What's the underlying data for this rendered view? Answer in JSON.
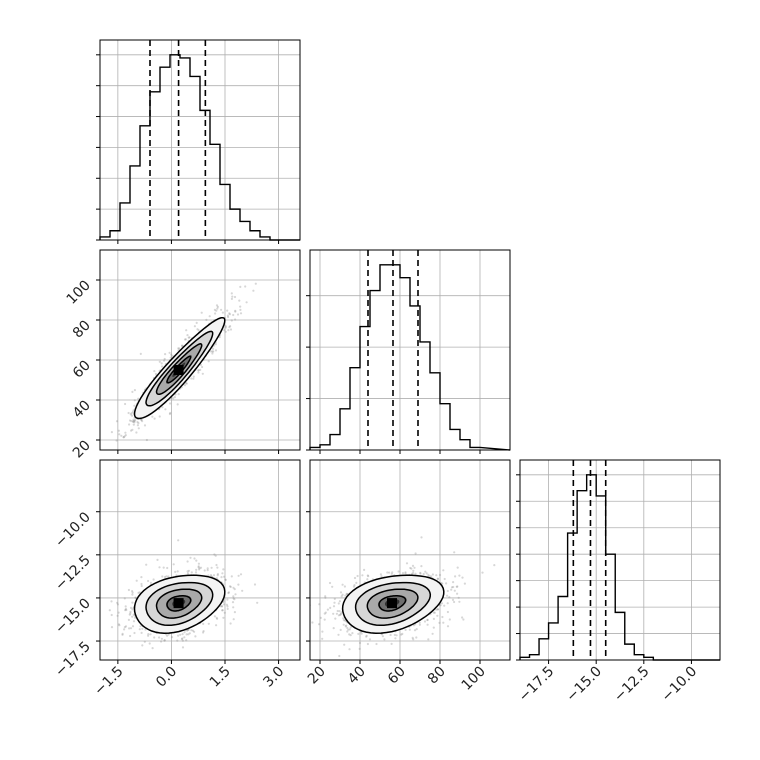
{
  "figure": {
    "background": "#ffffff",
    "grid": true,
    "colors": {
      "hist": "#000000",
      "quantile": "#000000",
      "scatter": "#8c8c8c",
      "grid": "#b0b0b0"
    }
  },
  "chart_data": [
    {
      "type": "histogram",
      "panel": "diag-0",
      "xlim": [
        -2.0,
        3.6
      ],
      "bin_edges": [
        -2.0,
        -1.72,
        -1.44,
        -1.16,
        -0.88,
        -0.6,
        -0.32,
        -0.04,
        0.24,
        0.52,
        0.8,
        1.08,
        1.36,
        1.64,
        1.92,
        2.2,
        2.48,
        2.76,
        3.04
      ],
      "counts": [
        1,
        3,
        12,
        24,
        37,
        48,
        56,
        60,
        59,
        53,
        42,
        31,
        18,
        10,
        6,
        3,
        1,
        0
      ],
      "quantiles": [
        -0.6,
        0.2,
        0.95
      ]
    },
    {
      "type": "histogram",
      "panel": "diag-1",
      "xlim": [
        15,
        115
      ],
      "bin_edges": [
        15,
        20,
        25,
        30,
        35,
        40,
        45,
        50,
        55,
        60,
        65,
        70,
        75,
        80,
        85,
        90,
        95,
        100
      ],
      "counts": [
        1,
        2,
        6,
        16,
        32,
        48,
        62,
        72,
        72,
        67,
        56,
        42,
        30,
        18,
        8,
        4,
        1
      ],
      "quantiles": [
        44,
        56.5,
        69
      ]
    },
    {
      "type": "histogram",
      "panel": "diag-2",
      "xlim": [
        -19.0,
        -8.5
      ],
      "bin_edges": [
        -19.0,
        -18.5,
        -18.0,
        -17.5,
        -17.0,
        -16.5,
        -16.0,
        -15.5,
        -15.0,
        -14.5,
        -14.0,
        -13.5,
        -13.0,
        -12.5,
        -12.0,
        -11.5
      ],
      "counts": [
        1,
        2,
        8,
        14,
        24,
        48,
        64,
        70,
        62,
        40,
        18,
        6,
        2,
        1,
        0
      ],
      "quantiles": [
        -16.2,
        -15.3,
        -14.5
      ]
    },
    {
      "type": "scatter",
      "panel": "joint-1-0",
      "xlim": [
        -2.0,
        3.6
      ],
      "ylim": [
        15,
        115
      ],
      "center": [
        0.2,
        55
      ],
      "spread": [
        0.6,
        12
      ],
      "correlation": 0.93,
      "n_points": 1600
    },
    {
      "type": "scatter",
      "panel": "joint-2-0",
      "xlim": [
        -2.0,
        3.6
      ],
      "ylim": [
        -18.6,
        -7.0
      ],
      "center": [
        0.2,
        -15.3
      ],
      "spread": [
        0.6,
        0.8
      ],
      "correlation": 0.3,
      "n_points": 1600
    },
    {
      "type": "scatter",
      "panel": "joint-2-1",
      "xlim": [
        15,
        115
      ],
      "ylim": [
        -18.6,
        -7.0
      ],
      "center": [
        56,
        -15.3
      ],
      "spread": [
        12,
        0.8
      ],
      "correlation": 0.3,
      "n_points": 1600
    }
  ],
  "axes": {
    "diag-0": {
      "yticks": [
        0,
        10,
        20,
        30,
        40,
        50,
        60
      ]
    },
    "diag-1": {
      "yticks": [
        0,
        20,
        40,
        60
      ]
    },
    "diag-2": {
      "yticks": [
        0,
        10,
        20,
        30,
        40,
        50,
        60,
        70
      ]
    },
    "joint-1-0": {
      "yticks": [
        20,
        40,
        60,
        80,
        100
      ],
      "ytick_labels": [
        "20",
        "40",
        "60",
        "80",
        "100"
      ],
      "xticks": [
        -1.5,
        0.0,
        1.5,
        3.0
      ]
    },
    "joint-2-0": {
      "xticks": [
        -1.5,
        0.0,
        1.5,
        3.0
      ],
      "xtick_labels": [
        "−1.5",
        "0.0",
        "1.5",
        "3.0"
      ],
      "yticks": [
        -17.5,
        -15.0,
        -12.5,
        -10.0
      ],
      "ytick_labels": [
        "−17.5",
        "−15.0",
        "−12.5",
        "−10.0"
      ]
    },
    "joint-2-1": {
      "xticks": [
        20,
        40,
        60,
        80,
        100
      ],
      "xtick_labels": [
        "20",
        "40",
        "60",
        "80",
        "100"
      ],
      "yticks": [
        -17.5,
        -15.0,
        -12.5,
        -10.0
      ]
    },
    "diag-2-x": {
      "xticks": [
        -17.5,
        -15.0,
        -12.5,
        -10.0
      ],
      "xtick_labels": [
        "−17.5",
        "−15.0",
        "−12.5",
        "−10.0"
      ]
    }
  }
}
